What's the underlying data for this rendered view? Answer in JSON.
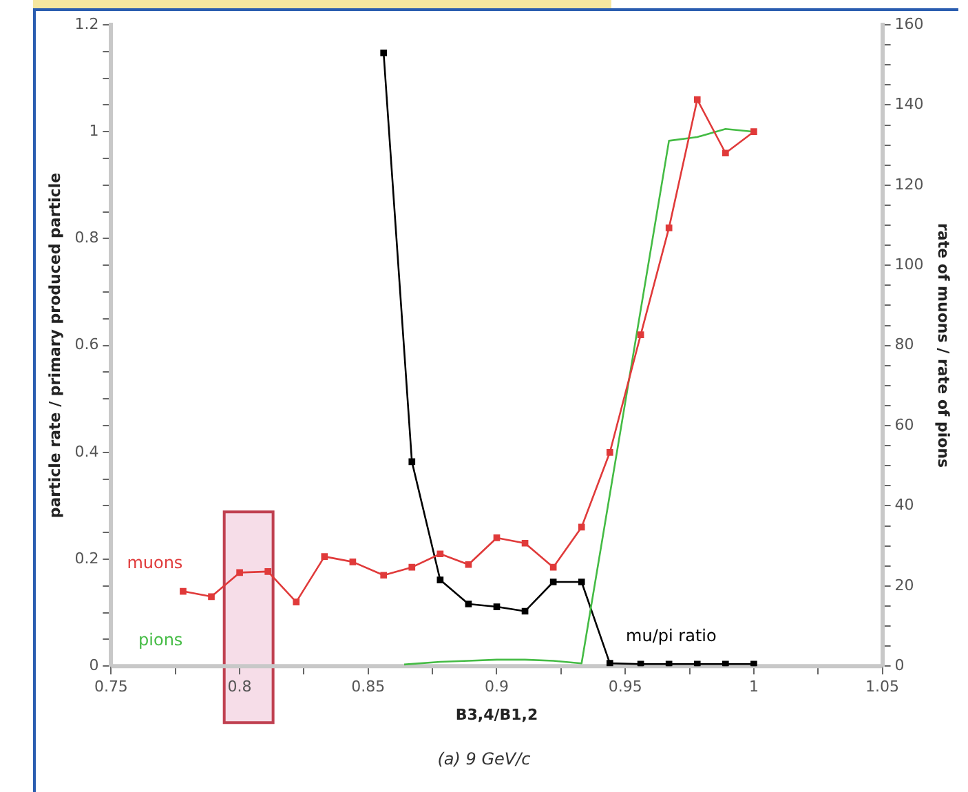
{
  "chart_data": {
    "type": "line",
    "xlabel": "B3,4/B1,2",
    "ylabel": "particle rate / primary produced particle",
    "y2label": "rate of muons / rate of pions",
    "annotations": [
      "(a) 9 GeV/c"
    ],
    "xlim": [
      0.75,
      1.05
    ],
    "xticks": [
      0.75,
      {
        "value": 0.775,
        "label": null
      },
      0.8,
      {
        "value": 0.825,
        "label": null
      },
      0.85,
      {
        "value": 0.875,
        "label": null
      },
      0.9,
      {
        "value": 0.925,
        "label": null
      },
      0.95,
      {
        "value": 0.975,
        "label": null
      },
      1,
      {
        "value": 1.025,
        "label": null
      },
      1.05
    ],
    "ylim": [
      0,
      1.2
    ],
    "yticks": [
      0,
      {
        "value": 0.05,
        "label": null
      },
      {
        "value": 0.1,
        "label": null
      },
      {
        "value": 0.15,
        "label": null
      },
      0.2,
      {
        "value": 0.25,
        "label": null
      },
      {
        "value": 0.3,
        "label": null
      },
      {
        "value": 0.35,
        "label": null
      },
      0.4,
      {
        "value": 0.45,
        "label": null
      },
      {
        "value": 0.5,
        "label": null
      },
      {
        "value": 0.55,
        "label": null
      },
      0.6,
      {
        "value": 0.65,
        "label": null
      },
      {
        "value": 0.7,
        "label": null
      },
      {
        "value": 0.75,
        "label": null
      },
      0.8,
      {
        "value": 0.85,
        "label": null
      },
      {
        "value": 0.9,
        "label": null
      },
      {
        "value": 0.95,
        "label": null
      },
      1,
      {
        "value": 1.05,
        "label": null
      },
      {
        "value": 1.1,
        "label": null
      },
      {
        "value": 1.15,
        "label": null
      },
      1.2
    ],
    "y2lim": [
      0,
      160
    ],
    "y2ticks": [
      0,
      {
        "value": 5,
        "label": null
      },
      {
        "value": 10,
        "label": null
      },
      {
        "value": 15,
        "label": null
      },
      20,
      {
        "value": 25,
        "label": null
      },
      {
        "value": 30,
        "label": null
      },
      {
        "value": 35,
        "label": null
      },
      40,
      {
        "value": 45,
        "label": null
      },
      {
        "value": 50,
        "label": null
      },
      {
        "value": 55,
        "label": null
      },
      60,
      {
        "value": 65,
        "label": null
      },
      {
        "value": 70,
        "label": null
      },
      {
        "value": 75,
        "label": null
      },
      80,
      {
        "value": 85,
        "label": null
      },
      {
        "value": 90,
        "label": null
      },
      {
        "value": 95,
        "label": null
      },
      100,
      {
        "value": 105,
        "label": null
      },
      {
        "value": 110,
        "label": null
      },
      {
        "value": 115,
        "label": null
      },
      120,
      {
        "value": 125,
        "label": null
      },
      {
        "value": 130,
        "label": null
      },
      {
        "value": 135,
        "label": null
      },
      140,
      {
        "value": 145,
        "label": null
      },
      {
        "value": 150,
        "label": null
      },
      {
        "value": 155,
        "label": null
      },
      160
    ],
    "bands": [
      {
        "axis": "x",
        "from": 0.794,
        "to": 0.813,
        "color": "#f6dde8"
      }
    ],
    "grid": false,
    "legend": false,
    "marker": "square",
    "line_style": "solid",
    "series": [
      {
        "name": "muons",
        "color": "#e03a3a",
        "x": [
          0.778,
          0.789,
          0.8,
          0.811,
          0.822,
          0.833,
          0.844,
          0.856,
          0.867,
          0.878,
          0.889,
          0.9,
          0.911,
          0.922,
          0.933,
          0.944,
          0.956,
          0.967,
          0.978,
          0.989,
          1.0
        ],
        "values": [
          0.14,
          0.13,
          0.175,
          0.177,
          0.12,
          0.205,
          0.195,
          0.17,
          0.185,
          0.21,
          0.19,
          0.24,
          0.23,
          0.185,
          0.26,
          0.4,
          0.62,
          0.82,
          1.06,
          0.96,
          1.0
        ]
      },
      {
        "name": "pions",
        "color": "#44bb44",
        "marker": "none",
        "x": [
          0.864,
          0.878,
          0.889,
          0.9,
          0.911,
          0.922,
          0.933,
          0.967,
          0.978,
          0.989,
          1.0
        ],
        "values": [
          0.003,
          0.008,
          0.01,
          0.012,
          0.012,
          0.01,
          0.005,
          0.983,
          0.99,
          1.005,
          1.0
        ]
      },
      {
        "name": "mu/pi ratio",
        "color": "#000000",
        "axis": "y2",
        "x": [
          0.856,
          0.867,
          0.878,
          0.889,
          0.9,
          0.911,
          0.922,
          0.933,
          0.944,
          0.956,
          0.967,
          0.978,
          0.989,
          1.0
        ],
        "values": [
          153,
          51,
          21.5,
          15.5,
          14.8,
          13.7,
          21,
          21,
          0.7,
          0.5,
          0.5,
          0.5,
          0.5,
          0.5
        ]
      }
    ]
  }
}
